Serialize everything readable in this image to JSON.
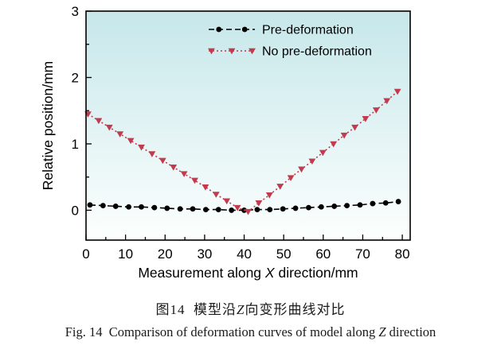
{
  "figure": {
    "caption_zh": "图14  模型沿Z向变形曲线对比",
    "caption_en": "Fig. 14  Comparison of deformation curves of model along Z direction"
  },
  "chart_data": {
    "type": "line",
    "title": "",
    "xlabel": "Measurement along X direction/mm",
    "ylabel": "Relative position/mm",
    "xlim": [
      0,
      82
    ],
    "ylim": [
      -0.45,
      3
    ],
    "xticks": [
      0,
      10,
      20,
      30,
      40,
      50,
      60,
      70,
      80
    ],
    "yticks": [
      0,
      1,
      2,
      3
    ],
    "x_minor_step": 5,
    "y_minor_step": 0.5,
    "grid": false,
    "legend_position": "upper-center-inside",
    "plot_background_gradient": [
      "#c6e7ea",
      "#fdfffe"
    ],
    "axis_color": "#000000",
    "series": [
      {
        "name": "Pre-deformation",
        "color": "#000000",
        "line_style": "dashed",
        "marker": "circle",
        "x": [
          1,
          4.3,
          7.5,
          10.8,
          14,
          17.3,
          20.5,
          23.8,
          27,
          30.3,
          33.5,
          36.8,
          40,
          43.3,
          46.5,
          49.8,
          53,
          56.3,
          59.5,
          62.8,
          66,
          69.3,
          72.5,
          75.8,
          79
        ],
        "y": [
          0.08,
          0.07,
          0.06,
          0.05,
          0.05,
          0.04,
          0.03,
          0.02,
          0.02,
          0.01,
          0.01,
          0.0,
          0.0,
          0.01,
          0.01,
          0.02,
          0.03,
          0.04,
          0.05,
          0.06,
          0.07,
          0.08,
          0.1,
          0.11,
          0.13
        ]
      },
      {
        "name": "No pre-deformation",
        "color": "#bf3b4d",
        "line_style": "dotted",
        "marker": "triangle-down",
        "x": [
          0.5,
          3.2,
          5.9,
          8.6,
          11.3,
          14,
          16.7,
          19.4,
          22.1,
          24.8,
          27.5,
          30.2,
          32.9,
          35.6,
          38.3,
          41,
          43.7,
          46.4,
          49.1,
          51.8,
          54.5,
          57.2,
          59.9,
          62.6,
          65.3,
          68,
          70.7,
          73.4,
          76.1,
          78.8
        ],
        "y": [
          1.45,
          1.35,
          1.25,
          1.15,
          1.05,
          0.95,
          0.85,
          0.75,
          0.65,
          0.55,
          0.45,
          0.35,
          0.24,
          0.14,
          0.04,
          -0.02,
          0.11,
          0.23,
          0.36,
          0.49,
          0.62,
          0.74,
          0.87,
          1.0,
          1.13,
          1.25,
          1.38,
          1.51,
          1.65,
          1.79
        ]
      }
    ]
  }
}
